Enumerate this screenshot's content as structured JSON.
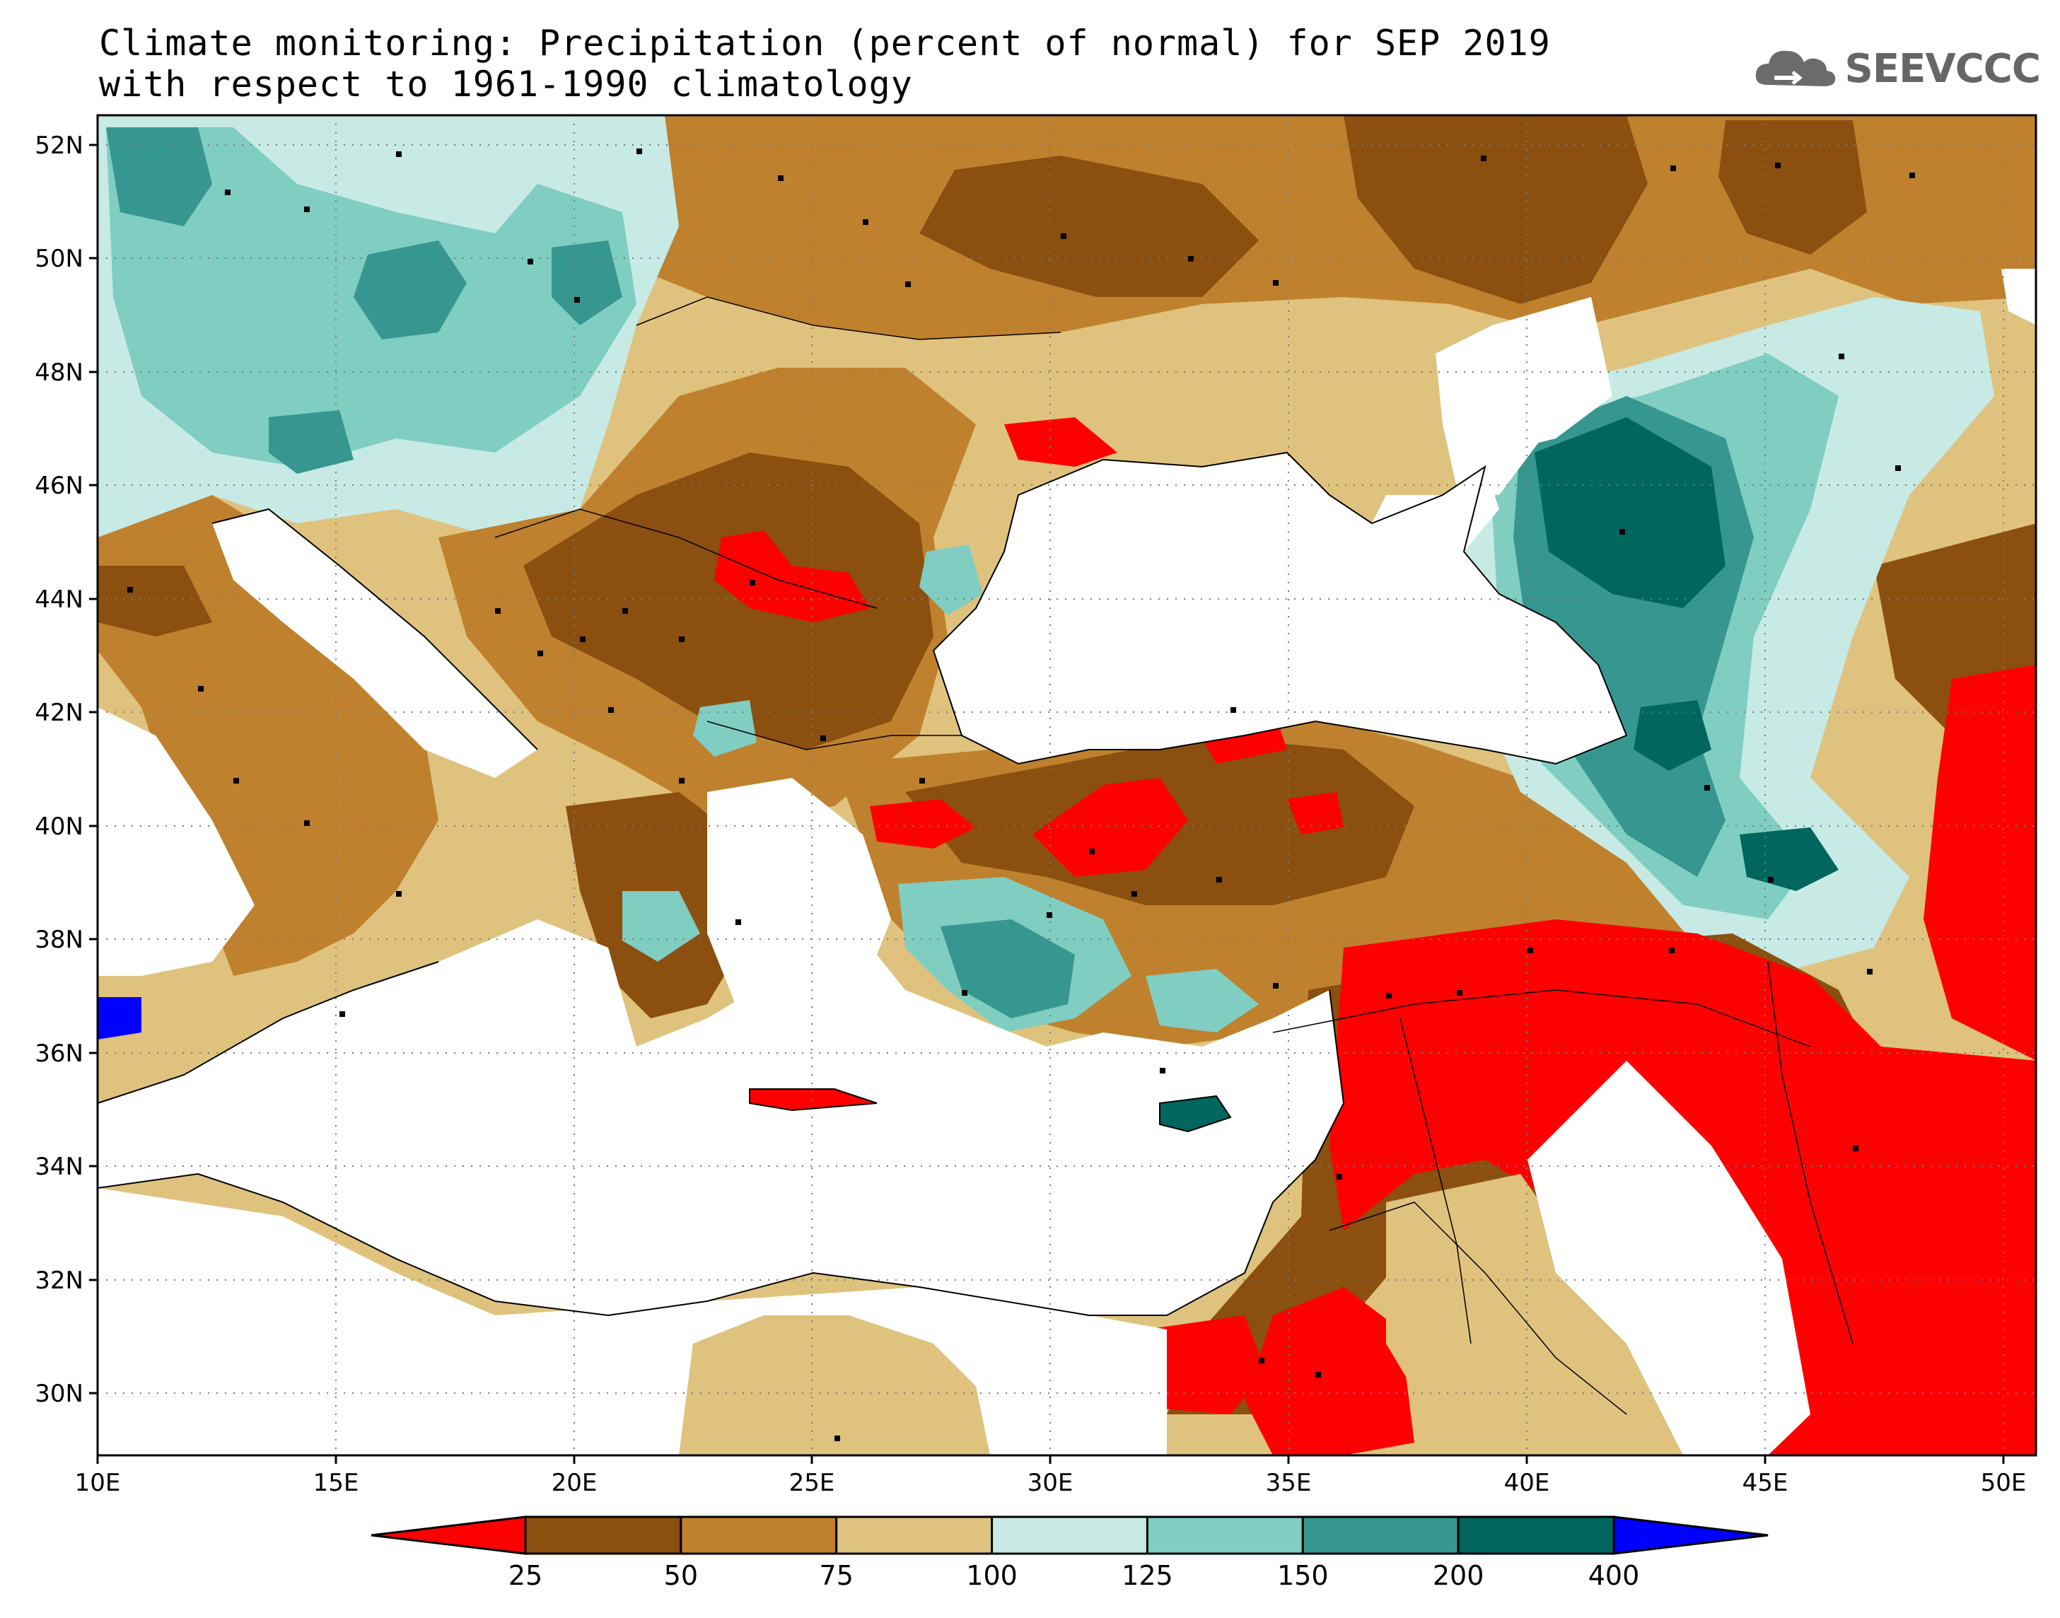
{
  "title_line1": "Climate monitoring: Precipitation (percent of normal) for SEP 2019",
  "title_line2": "with respect to 1961-1990 climatology",
  "logo": {
    "text": "SEEVCCC",
    "icon": "cloud-icon"
  },
  "lat_labels": [
    "52N",
    "50N",
    "48N",
    "46N",
    "44N",
    "42N",
    "40N",
    "38N",
    "36N",
    "34N",
    "32N",
    "30N"
  ],
  "lon_labels": [
    "10E",
    "15E",
    "20E",
    "25E",
    "30E",
    "35E",
    "40E",
    "45E",
    "50E"
  ],
  "colorbar": {
    "ticks": [
      "25",
      "50",
      "75",
      "100",
      "125",
      "150",
      "200",
      "400"
    ],
    "colors": [
      "#ff0000",
      "#8b4f0f",
      "#bf812d",
      "#dfc27d",
      "#c7eae5",
      "#80cdc1",
      "#35978f",
      "#01665e",
      "#0000ff"
    ]
  },
  "colors": {
    "sea": "#ffffff",
    "lt25": "#ff0000",
    "c25_50": "#8b4f0f",
    "c50_75": "#bf812d",
    "c75_100": "#dfc27d",
    "c100_125": "#c7eae5",
    "c125_150": "#80cdc1",
    "c150_200": "#35978f",
    "c200_400": "#01665e",
    "gt400": "#0000ff"
  }
}
